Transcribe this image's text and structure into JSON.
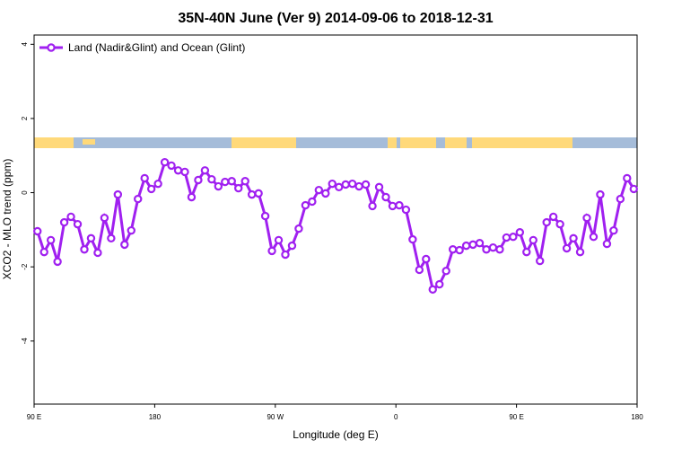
{
  "chart_data": {
    "type": "line",
    "title": "35N-40N June (Ver 9)   2014-09-06 to 2018-12-31",
    "x_label": "Longitude (deg E)",
    "y_label": "XCO2 - MLO trend (ppm)",
    "x": [
      92.5,
      97.5,
      102.5,
      107.5,
      112.5,
      117.5,
      122.5,
      127.5,
      132.5,
      137.5,
      142.5,
      147.5,
      152.5,
      157.5,
      162.5,
      167.5,
      172.5,
      177.5,
      182.5,
      187.5,
      192.5,
      197.5,
      202.5,
      207.5,
      212.5,
      217.5,
      222.5,
      227.5,
      232.5,
      237.5,
      242.5,
      247.5,
      252.5,
      257.5,
      262.5,
      267.5,
      272.5,
      277.5,
      282.5,
      287.5,
      292.5,
      297.5,
      302.5,
      307.5,
      312.5,
      317.5,
      322.5,
      327.5,
      332.5,
      337.5,
      342.5,
      347.5,
      352.5,
      357.5,
      362.5,
      367.5,
      372.5,
      377.5,
      382.5,
      387.5,
      392.5,
      397.5,
      402.5,
      407.5,
      412.5,
      417.5,
      422.5,
      427.5,
      432.5,
      437.5,
      442.5,
      447.5,
      452.5,
      457.5,
      462.5,
      467.5,
      472.5,
      477.5,
      482.5,
      487.5,
      492.5,
      497.5,
      502.5,
      507.5,
      512.5,
      517.5,
      522.5,
      527.5,
      532.5,
      537.5
    ],
    "series": [
      {
        "name": "Land (Nadir&Glint) and Ocean (Glint)",
        "color": "#a020f0",
        "values": [
          -1.04,
          -1.6,
          -1.28,
          -1.86,
          -0.8,
          -0.65,
          -0.85,
          -1.53,
          -1.23,
          -1.62,
          -0.68,
          -1.23,
          -0.05,
          -1.4,
          -1.02,
          -0.17,
          0.39,
          0.1,
          0.24,
          0.82,
          0.73,
          0.6,
          0.56,
          -0.12,
          0.34,
          0.6,
          0.36,
          0.17,
          0.29,
          0.31,
          0.12,
          0.31,
          -0.05,
          -0.02,
          -0.63,
          -1.57,
          -1.28,
          -1.67,
          -1.43,
          -0.97,
          -0.34,
          -0.24,
          0.07,
          -0.02,
          0.24,
          0.15,
          0.22,
          0.24,
          0.17,
          0.22,
          -0.36,
          0.15,
          -0.12,
          -0.36,
          -0.34,
          -0.46,
          -1.26,
          -2.08,
          -1.79,
          -2.61,
          -2.47,
          -2.11,
          -1.53,
          -1.55,
          -1.43,
          -1.4,
          -1.36,
          -1.53,
          -1.48,
          -1.53,
          -1.21,
          -1.19,
          -1.07,
          -1.6,
          -1.28,
          -1.84,
          -0.8,
          -0.65,
          -0.85,
          -1.5,
          -1.23,
          -1.6,
          -0.68,
          -1.19,
          -0.05,
          -1.38,
          -1.02,
          -0.17,
          0.39,
          0.1
        ]
      }
    ],
    "xlim": [
      90,
      540
    ],
    "xticks": [
      {
        "value": 90,
        "label": "90 E"
      },
      180,
      {
        "value": 270,
        "label": "90 W"
      },
      {
        "value": 360,
        "label": "0"
      },
      {
        "value": 450,
        "label": "90 E"
      },
      {
        "value": 540,
        "label": "180"
      }
    ],
    "ylim": [
      -5.7,
      4.25
    ],
    "yticks": [
      -4,
      -2,
      0,
      2,
      4
    ],
    "legend": "top-left"
  }
}
